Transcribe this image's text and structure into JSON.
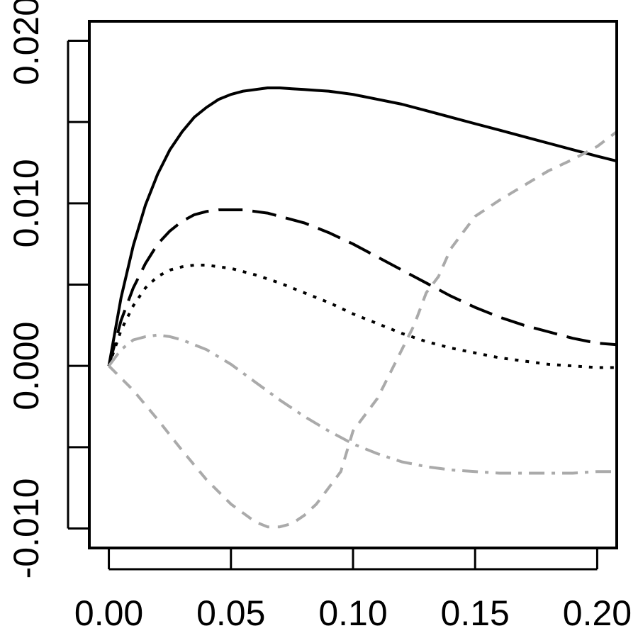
{
  "chart_data": {
    "type": "line",
    "title": "",
    "xlabel": "",
    "ylabel": "",
    "xlim": [
      -0.008,
      0.208
    ],
    "ylim": [
      -0.0112,
      0.0212
    ],
    "x_ticks": [
      {
        "value": 0.0,
        "label": "0.00"
      },
      {
        "value": 0.05,
        "label": "0.05"
      },
      {
        "value": 0.1,
        "label": "0.10"
      },
      {
        "value": 0.15,
        "label": "0.15"
      },
      {
        "value": 0.2,
        "label": "0.20"
      }
    ],
    "y_ticks": [
      {
        "value": -0.01,
        "label": "-0.010"
      },
      {
        "value": -0.005,
        "label": ""
      },
      {
        "value": 0.0,
        "label": "0.000"
      },
      {
        "value": 0.005,
        "label": ""
      },
      {
        "value": 0.01,
        "label": "0.010"
      },
      {
        "value": 0.015,
        "label": ""
      },
      {
        "value": 0.02,
        "label": "0.020"
      }
    ],
    "grid": false,
    "legend": "none",
    "series": [
      {
        "style": "solid",
        "color": "#000000",
        "x": [
          0,
          0.005,
          0.01,
          0.015,
          0.02,
          0.025,
          0.03,
          0.035,
          0.04,
          0.045,
          0.05,
          0.055,
          0.06,
          0.065,
          0.07,
          0.075,
          0.08,
          0.085,
          0.09,
          0.095,
          0.1,
          0.11,
          0.12,
          0.13,
          0.14,
          0.15,
          0.16,
          0.17,
          0.18,
          0.19,
          0.2,
          0.208
        ],
        "y": [
          0,
          0.0042,
          0.0074,
          0.0099,
          0.0118,
          0.0133,
          0.0144,
          0.0153,
          0.0159,
          0.0164,
          0.0167,
          0.0169,
          0.017,
          0.0171,
          0.0171,
          0.01705,
          0.017,
          0.01695,
          0.0169,
          0.0168,
          0.0167,
          0.0164,
          0.0161,
          0.0157,
          0.0153,
          0.0149,
          0.0145,
          0.0141,
          0.0137,
          0.0133,
          0.0129,
          0.0126
        ]
      },
      {
        "style": "longdash",
        "color": "#000000",
        "x": [
          0,
          0.005,
          0.01,
          0.015,
          0.02,
          0.025,
          0.03,
          0.035,
          0.04,
          0.045,
          0.05,
          0.055,
          0.06,
          0.065,
          0.07,
          0.08,
          0.09,
          0.1,
          0.11,
          0.12,
          0.13,
          0.14,
          0.15,
          0.16,
          0.17,
          0.18,
          0.19,
          0.2,
          0.208
        ],
        "y": [
          0,
          0.0028,
          0.0048,
          0.0063,
          0.0075,
          0.0083,
          0.0089,
          0.0093,
          0.0095,
          0.0096,
          0.0096,
          0.0096,
          0.0095,
          0.0094,
          0.0092,
          0.0088,
          0.0082,
          0.0075,
          0.0067,
          0.0059,
          0.0051,
          0.0043,
          0.0036,
          0.003,
          0.0025,
          0.0021,
          0.0017,
          0.0014,
          0.0013
        ]
      },
      {
        "style": "dotted",
        "color": "#000000",
        "x": [
          0,
          0.005,
          0.01,
          0.015,
          0.02,
          0.025,
          0.03,
          0.035,
          0.04,
          0.045,
          0.05,
          0.06,
          0.07,
          0.08,
          0.09,
          0.1,
          0.11,
          0.12,
          0.13,
          0.14,
          0.15,
          0.16,
          0.17,
          0.18,
          0.19,
          0.2,
          0.208
        ],
        "y": [
          0,
          0.0022,
          0.0037,
          0.0048,
          0.0055,
          0.0059,
          0.0061,
          0.0062,
          0.0062,
          0.0061,
          0.006,
          0.0056,
          0.0051,
          0.0045,
          0.0039,
          0.0032,
          0.0026,
          0.002,
          0.0015,
          0.0011,
          0.0008,
          0.0005,
          0.0003,
          0.0001,
          0.0,
          -0.0001,
          -0.0001
        ]
      },
      {
        "style": "dashdot",
        "color": "#aaaaaa",
        "x": [
          0,
          0.005,
          0.01,
          0.015,
          0.02,
          0.025,
          0.03,
          0.04,
          0.05,
          0.06,
          0.07,
          0.08,
          0.09,
          0.1,
          0.11,
          0.12,
          0.13,
          0.14,
          0.15,
          0.16,
          0.17,
          0.18,
          0.19,
          0.2,
          0.208
        ],
        "y": [
          0,
          0.001,
          0.0016,
          0.0018,
          0.0019,
          0.0018,
          0.0016,
          0.001,
          0.0001,
          -0.001,
          -0.0021,
          -0.0031,
          -0.004,
          -0.0048,
          -0.0054,
          -0.0059,
          -0.0062,
          -0.0064,
          -0.0065,
          -0.0066,
          -0.0066,
          -0.0066,
          -0.0066,
          -0.0065,
          -0.0065
        ]
      },
      {
        "style": "dashed",
        "color": "#aaaaaa",
        "x": [
          0,
          0.01,
          0.02,
          0.03,
          0.04,
          0.05,
          0.06,
          0.065,
          0.07,
          0.075,
          0.08,
          0.085,
          0.09,
          0.095,
          0.1,
          0.105,
          0.11,
          0.115,
          0.12,
          0.125,
          0.13,
          0.135,
          0.14,
          0.145,
          0.15,
          0.16,
          0.17,
          0.18,
          0.19,
          0.2,
          0.208
        ],
        "y": [
          0,
          -0.0015,
          -0.0033,
          -0.0052,
          -0.007,
          -0.0085,
          -0.0096,
          -0.0099,
          -0.0099,
          -0.0097,
          -0.0092,
          -0.0085,
          -0.0075,
          -0.0065,
          -0.004,
          -0.003,
          -0.002,
          -0.0005,
          0.001,
          0.0025,
          0.0045,
          0.0055,
          0.0072,
          0.0082,
          0.0092,
          0.0102,
          0.0111,
          0.012,
          0.0127,
          0.0135,
          0.0144
        ]
      }
    ]
  }
}
